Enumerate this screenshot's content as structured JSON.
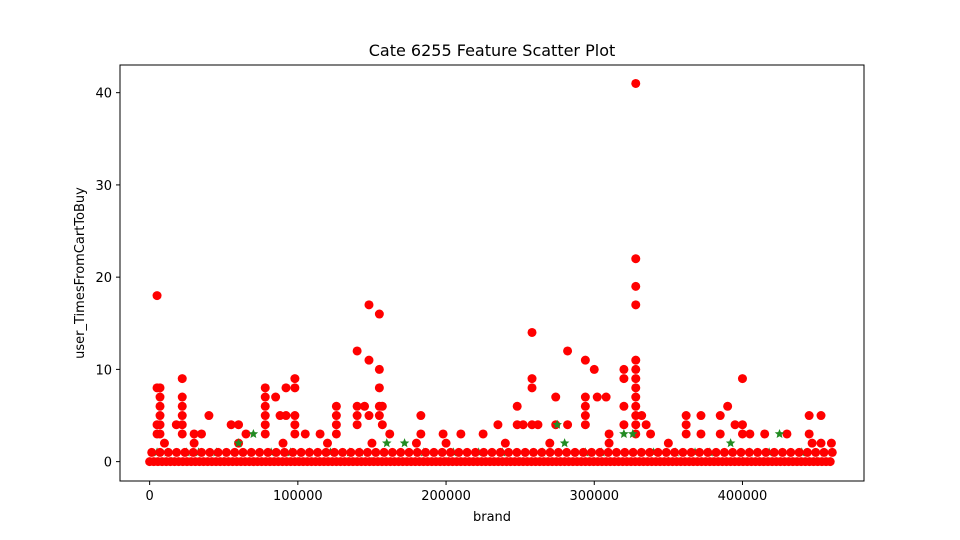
{
  "chart_data": {
    "type": "scatter",
    "title": "Cate 6255 Feature Scatter Plot",
    "xlabel": "brand",
    "ylabel": "user_TimesFromCartToBuy",
    "xlim": [
      -20000,
      482000
    ],
    "ylim": [
      -2.1,
      43
    ],
    "x_ticks": [
      0,
      100000,
      200000,
      300000,
      400000
    ],
    "x_tick_labels": [
      "0",
      "100000",
      "200000",
      "300000",
      "400000"
    ],
    "y_ticks": [
      0,
      10,
      20,
      30,
      40
    ],
    "y_tick_labels": [
      "0",
      "10",
      "20",
      "30",
      "40"
    ],
    "grid": false,
    "series": [
      {
        "marker": "circle",
        "color": "#ff0000",
        "points": [
          [
            5000,
            18
          ],
          [
            5000,
            8
          ],
          [
            7000,
            8
          ],
          [
            7000,
            7
          ],
          [
            7000,
            6
          ],
          [
            7000,
            5
          ],
          [
            7000,
            4
          ],
          [
            5000,
            4
          ],
          [
            7000,
            3
          ],
          [
            5000,
            3
          ],
          [
            22000,
            9
          ],
          [
            22000,
            7
          ],
          [
            22000,
            6
          ],
          [
            22000,
            5
          ],
          [
            22000,
            4
          ],
          [
            18000,
            4
          ],
          [
            22000,
            3
          ],
          [
            40000,
            5
          ],
          [
            30000,
            3
          ],
          [
            35000,
            3
          ],
          [
            55000,
            4
          ],
          [
            60000,
            4
          ],
          [
            65000,
            3
          ],
          [
            78000,
            8
          ],
          [
            78000,
            7
          ],
          [
            78000,
            6
          ],
          [
            78000,
            5
          ],
          [
            78000,
            4
          ],
          [
            78000,
            3
          ],
          [
            85000,
            7
          ],
          [
            88000,
            5
          ],
          [
            92000,
            8
          ],
          [
            92000,
            5
          ],
          [
            98000,
            9
          ],
          [
            98000,
            8
          ],
          [
            98000,
            5
          ],
          [
            98000,
            4
          ],
          [
            98000,
            3
          ],
          [
            105000,
            3
          ],
          [
            115000,
            3
          ],
          [
            126000,
            6
          ],
          [
            126000,
            5
          ],
          [
            126000,
            4
          ],
          [
            126000,
            3
          ],
          [
            140000,
            12
          ],
          [
            140000,
            6
          ],
          [
            140000,
            5
          ],
          [
            140000,
            4
          ],
          [
            145000,
            6
          ],
          [
            148000,
            17
          ],
          [
            148000,
            11
          ],
          [
            148000,
            5
          ],
          [
            155000,
            16
          ],
          [
            155000,
            10
          ],
          [
            155000,
            8
          ],
          [
            155000,
            6
          ],
          [
            155000,
            5
          ],
          [
            157000,
            6
          ],
          [
            157000,
            4
          ],
          [
            162000,
            3
          ],
          [
            183000,
            5
          ],
          [
            183000,
            3
          ],
          [
            198000,
            3
          ],
          [
            210000,
            3
          ],
          [
            225000,
            3
          ],
          [
            235000,
            4
          ],
          [
            248000,
            6
          ],
          [
            248000,
            4
          ],
          [
            252000,
            4
          ],
          [
            258000,
            14
          ],
          [
            258000,
            9
          ],
          [
            258000,
            8
          ],
          [
            258000,
            4
          ],
          [
            262000,
            4
          ],
          [
            274000,
            7
          ],
          [
            274000,
            4
          ],
          [
            282000,
            12
          ],
          [
            282000,
            4
          ],
          [
            294000,
            11
          ],
          [
            294000,
            7
          ],
          [
            294000,
            6
          ],
          [
            294000,
            5
          ],
          [
            294000,
            4
          ],
          [
            300000,
            10
          ],
          [
            302000,
            7
          ],
          [
            308000,
            7
          ],
          [
            310000,
            3
          ],
          [
            320000,
            10
          ],
          [
            320000,
            9
          ],
          [
            320000,
            6
          ],
          [
            320000,
            4
          ],
          [
            328000,
            41
          ],
          [
            328000,
            22
          ],
          [
            328000,
            19
          ],
          [
            328000,
            17
          ],
          [
            328000,
            11
          ],
          [
            328000,
            10
          ],
          [
            328000,
            9
          ],
          [
            328000,
            8
          ],
          [
            328000,
            7
          ],
          [
            328000,
            6
          ],
          [
            328000,
            5
          ],
          [
            328000,
            4
          ],
          [
            328000,
            3
          ],
          [
            332000,
            5
          ],
          [
            335000,
            4
          ],
          [
            338000,
            3
          ],
          [
            362000,
            5
          ],
          [
            362000,
            4
          ],
          [
            362000,
            3
          ],
          [
            372000,
            5
          ],
          [
            372000,
            3
          ],
          [
            385000,
            5
          ],
          [
            385000,
            3
          ],
          [
            390000,
            6
          ],
          [
            395000,
            4
          ],
          [
            400000,
            9
          ],
          [
            400000,
            4
          ],
          [
            400000,
            3
          ],
          [
            405000,
            3
          ],
          [
            415000,
            3
          ],
          [
            430000,
            3
          ],
          [
            445000,
            5
          ],
          [
            445000,
            3
          ],
          [
            453000,
            5
          ],
          [
            453000,
            2
          ],
          [
            460000,
            2
          ],
          [
            447000,
            2
          ],
          [
            310000,
            2
          ],
          [
            270000,
            2
          ],
          [
            240000,
            2
          ],
          [
            200000,
            2
          ],
          [
            180000,
            2
          ],
          [
            120000,
            2
          ],
          [
            60000,
            2
          ],
          [
            10000,
            2
          ],
          [
            30000,
            2
          ],
          [
            90000,
            2
          ],
          [
            150000,
            2
          ],
          [
            350000,
            2
          ]
        ]
      },
      {
        "marker": "star",
        "color": "#228b22",
        "points": [
          [
            5000,
            1
          ],
          [
            12000,
            1
          ],
          [
            25000,
            1
          ],
          [
            33000,
            1
          ],
          [
            45000,
            1
          ],
          [
            60000,
            2
          ],
          [
            70000,
            3
          ],
          [
            82000,
            1
          ],
          [
            95000,
            1
          ],
          [
            108000,
            1
          ],
          [
            122000,
            1
          ],
          [
            135000,
            1
          ],
          [
            142000,
            1
          ],
          [
            160000,
            2
          ],
          [
            172000,
            2
          ],
          [
            185000,
            1
          ],
          [
            205000,
            1
          ],
          [
            222000,
            1
          ],
          [
            238000,
            1
          ],
          [
            265000,
            1
          ],
          [
            275000,
            4
          ],
          [
            280000,
            2
          ],
          [
            294000,
            1
          ],
          [
            305000,
            1
          ],
          [
            320000,
            3
          ],
          [
            326000,
            3
          ],
          [
            340000,
            1
          ],
          [
            355000,
            1
          ],
          [
            368000,
            1
          ],
          [
            378000,
            1
          ],
          [
            392000,
            2
          ],
          [
            405000,
            1
          ],
          [
            418000,
            1
          ],
          [
            425000,
            3
          ],
          [
            440000,
            1
          ],
          [
            455000,
            1
          ],
          [
            15000,
            0
          ],
          [
            50000,
            0
          ],
          [
            100000,
            0
          ],
          [
            150000,
            0
          ],
          [
            200000,
            0
          ],
          [
            250000,
            0
          ],
          [
            300000,
            0
          ],
          [
            350000,
            0
          ],
          [
            400000,
            0
          ],
          [
            450000,
            0
          ]
        ]
      }
    ]
  }
}
